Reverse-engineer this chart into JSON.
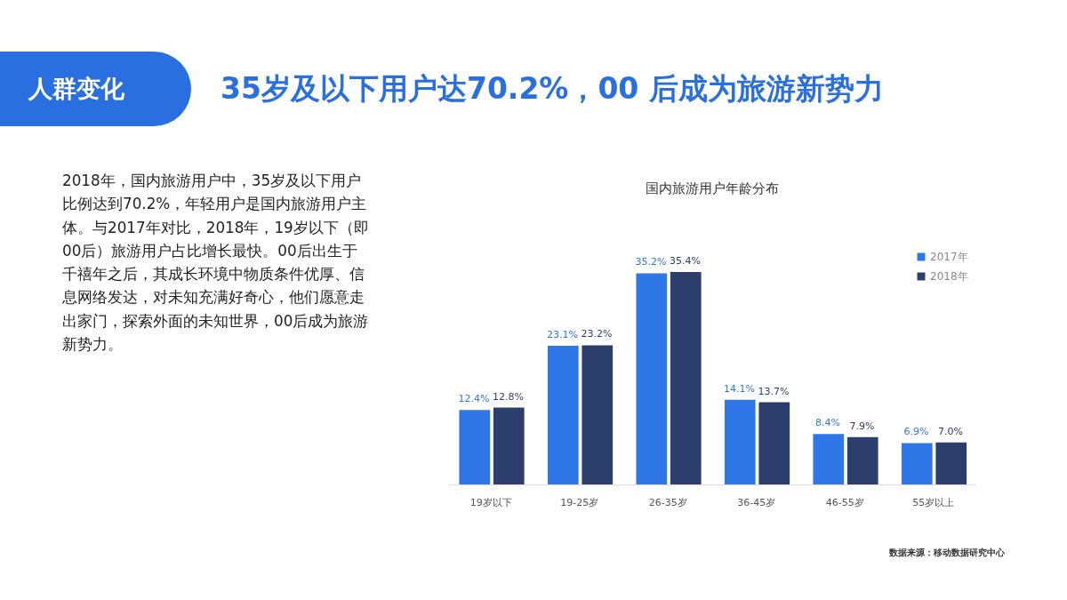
{
  "chart_data": {
    "type": "bar",
    "title": "国内旅游用户年龄分布",
    "categories": [
      "19岁以下",
      "19-25岁",
      "26-35岁",
      "36-45岁",
      "46-55岁",
      "55岁以上"
    ],
    "series": [
      {
        "name": "2017年",
        "color": "#2f76e6",
        "values": [
          12.4,
          23.1,
          35.2,
          14.1,
          8.4,
          6.9
        ],
        "value_labels": [
          "12.4%",
          "23.1%",
          "35.2%",
          "14.1%",
          "8.4%",
          "6.9%"
        ]
      },
      {
        "name": "2018年",
        "color": "#2c3e6b",
        "values": [
          12.8,
          23.2,
          35.4,
          13.7,
          7.9,
          7.0
        ],
        "value_labels": [
          "12.8%",
          "23.2%",
          "35.4%",
          "13.7%",
          "7.9%",
          "7.0%"
        ]
      }
    ],
    "legend": "top right",
    "grid": false,
    "annotations": [
      "人群变化",
      "35岁及以下用户达70.2%，00 后成为旅游新势力",
      "2018年，国内旅游用户中，35岁及以下用户比例达到70.2%，年轻用户是国内旅游用户主体。与2017年对比，2018年，19岁以下（即00后）旅游用户占比增长最快。00后出生于千禧年之后，其成长环境中物质条件优厚、信息网络发达，对未知充满好奇心，他们愿意走出家门，探索外面的未知世界，00后成为旅游新势力。",
      "数据来源：移动数据研究中心"
    ]
  }
}
